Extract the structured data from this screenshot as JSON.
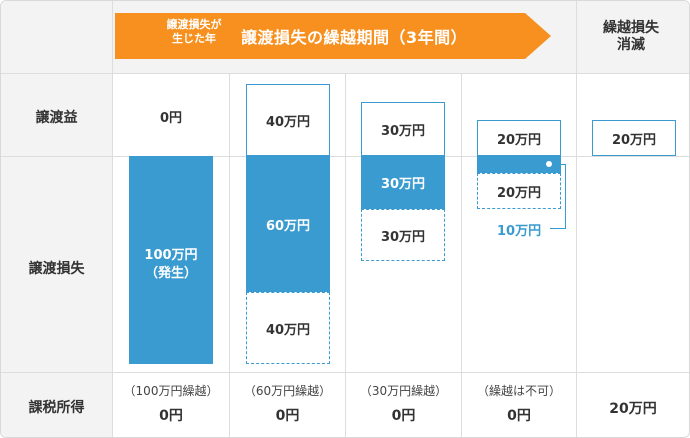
{
  "header": {
    "arrow_small_label": "譲渡損失が\n生じた年",
    "arrow_main_label": "譲渡損失の繰越期間（3年間）",
    "lapse_label": "繰越損失\n消滅",
    "arrow_color": "#f7901e"
  },
  "rows": {
    "gain": "譲渡益",
    "loss": "譲渡損失",
    "taxable": "課税所得"
  },
  "columns": [
    {
      "gain": "0円",
      "loss": "100万円\n（発生）",
      "tax_note": "（100万円繰越）",
      "tax_value": "0円"
    },
    {
      "gain": "40万円",
      "loss_used": "60万円",
      "loss_carry": "40万円",
      "tax_note": "（60万円繰越）",
      "tax_value": "0円"
    },
    {
      "gain": "30万円",
      "loss_used": "30万円",
      "loss_carry": "30万円",
      "tax_note": "（30万円繰越）",
      "tax_value": "0円"
    },
    {
      "gain": "20万円",
      "loss_carry": "20万円",
      "callout": "10万円",
      "tax_note": "（繰越は不可）",
      "tax_value": "0円"
    },
    {
      "gain": "20万円",
      "tax_value": "20万円"
    }
  ],
  "colors": {
    "accent_blue": "#3a9bd0",
    "header_gray": "#f3f3f3"
  }
}
